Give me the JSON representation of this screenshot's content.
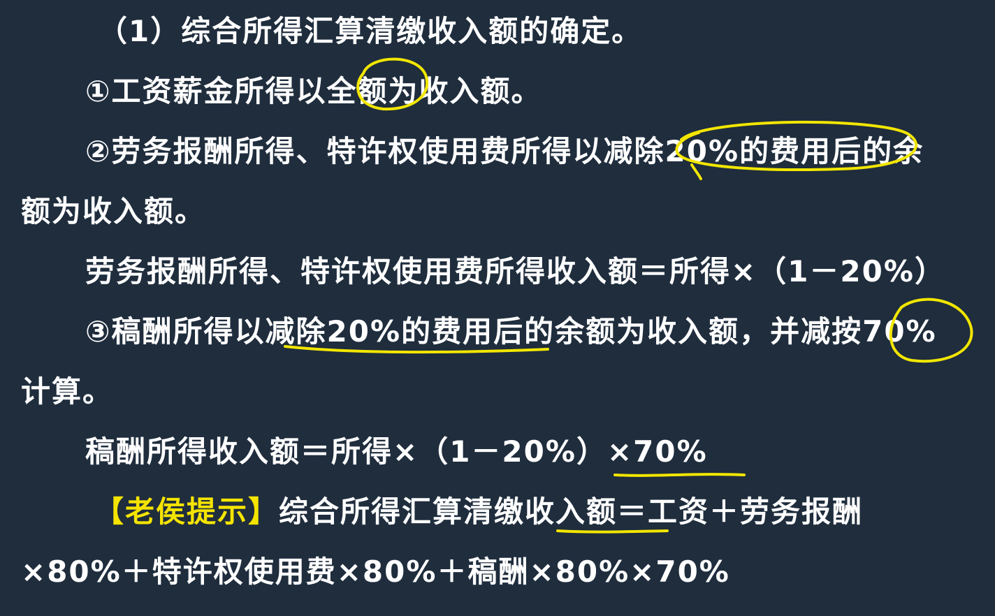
{
  "slide": {
    "heading": "（1）综合所得汇算清缴收入额的确定。",
    "item1": "①工资薪金所得以全额为收入额。",
    "item2_line1": "②劳务报酬所得、特许权使用费所得以减除20%的费用后的余",
    "item2_line2": "额为收入额。",
    "formula1": "劳务报酬所得、特许权使用费所得收入额＝所得×（1－20%）",
    "item3_line1": "③稿酬所得以减除20%的费用后的余额为收入额，并减按70%",
    "item3_line2": "计算。",
    "formula2": "稿酬所得收入额＝所得×（1－20%）×70%",
    "hint_tag": "【老侯提示】",
    "hint_line1": "综合所得汇算清缴收入额＝工资＋劳务报酬",
    "hint_line2": "×80%＋特许权使用费×80%＋稿酬×80%×70%"
  },
  "colors": {
    "background": "#1f2d3d",
    "text": "#ffffff",
    "highlight": "#f5e400",
    "annotation": "#f2e600"
  }
}
